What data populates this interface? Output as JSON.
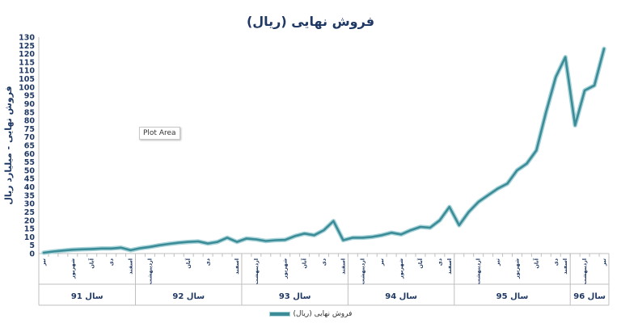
{
  "chart_data": {
    "type": "line",
    "title": "فروش نهایی (ریال)",
    "ylabel": "فروش نهایی - میلیارد ریال",
    "xlabel": "",
    "ylim": [
      0,
      130
    ],
    "yticks": [
      0,
      5,
      10,
      15,
      20,
      25,
      30,
      35,
      40,
      45,
      50,
      55,
      60,
      65,
      70,
      75,
      80,
      85,
      90,
      95,
      100,
      105,
      110,
      115,
      120,
      125,
      130
    ],
    "grid": false,
    "legend_position": "bottom",
    "tooltip": "Plot Area",
    "series_color": "#3c8c98",
    "series": [
      {
        "name": "فروش نهایی (ریال)",
        "values": [
          0.5,
          1.2,
          1.8,
          2.3,
          2.5,
          2.7,
          3.0,
          3.0,
          3.5,
          2.0,
          3.2,
          4.0,
          5.0,
          5.8,
          6.5,
          7.0,
          7.3,
          6.0,
          7.0,
          9.5,
          7.0,
          9.0,
          8.5,
          7.5,
          8.0,
          8.2,
          10.5,
          12.0,
          11.0,
          14.0,
          19.5,
          8.0,
          9.5,
          9.5,
          10.0,
          11.0,
          12.5,
          11.5,
          14.0,
          16.0,
          15.5,
          20.0,
          28.0,
          17.0,
          25.0,
          31.0,
          35.0,
          39.0,
          42.0,
          50.0,
          54.0,
          62.0,
          85.0,
          106.0,
          118.0,
          77.0,
          98.0,
          101.0,
          123.0
        ]
      }
    ],
    "years": [
      {
        "label": "سال 91",
        "start": 0,
        "end": 9
      },
      {
        "label": "سال 92",
        "start": 10,
        "end": 20
      },
      {
        "label": "سال 93",
        "start": 21,
        "end": 31
      },
      {
        "label": "سال 94",
        "start": 32,
        "end": 42
      },
      {
        "label": "سال 95",
        "start": 43,
        "end": 54
      },
      {
        "label": "سال 96",
        "start": 55,
        "end": 58
      }
    ],
    "month_labels": [
      {
        "index": 0,
        "text": "تیر"
      },
      {
        "index": 3,
        "text": "شهریور"
      },
      {
        "index": 5,
        "text": "آبان"
      },
      {
        "index": 7,
        "text": "دی"
      },
      {
        "index": 9,
        "text": "اسفند"
      },
      {
        "index": 11,
        "text": "اردیبهشت"
      },
      {
        "index": 15,
        "text": "آبان"
      },
      {
        "index": 17,
        "text": "دی"
      },
      {
        "index": 20,
        "text": "اسفند"
      },
      {
        "index": 22,
        "text": "اردیبهشت"
      },
      {
        "index": 25,
        "text": "شهریور"
      },
      {
        "index": 27,
        "text": "آبان"
      },
      {
        "index": 29,
        "text": "دی"
      },
      {
        "index": 31,
        "text": "اسفند"
      },
      {
        "index": 33,
        "text": "اردیبهشت"
      },
      {
        "index": 35,
        "text": "تیر"
      },
      {
        "index": 37,
        "text": "شهریور"
      },
      {
        "index": 39,
        "text": "آبان"
      },
      {
        "index": 41,
        "text": "دی"
      },
      {
        "index": 42,
        "text": "اسفند"
      },
      {
        "index": 45,
        "text": "اردیبهشت"
      },
      {
        "index": 47,
        "text": "تیر"
      },
      {
        "index": 49,
        "text": "شهریور"
      },
      {
        "index": 51,
        "text": "آبان"
      },
      {
        "index": 53,
        "text": "دی"
      },
      {
        "index": 54,
        "text": "اسفند"
      },
      {
        "index": 56,
        "text": "اردیبهشت"
      },
      {
        "index": 58,
        "text": "تیر"
      }
    ]
  }
}
